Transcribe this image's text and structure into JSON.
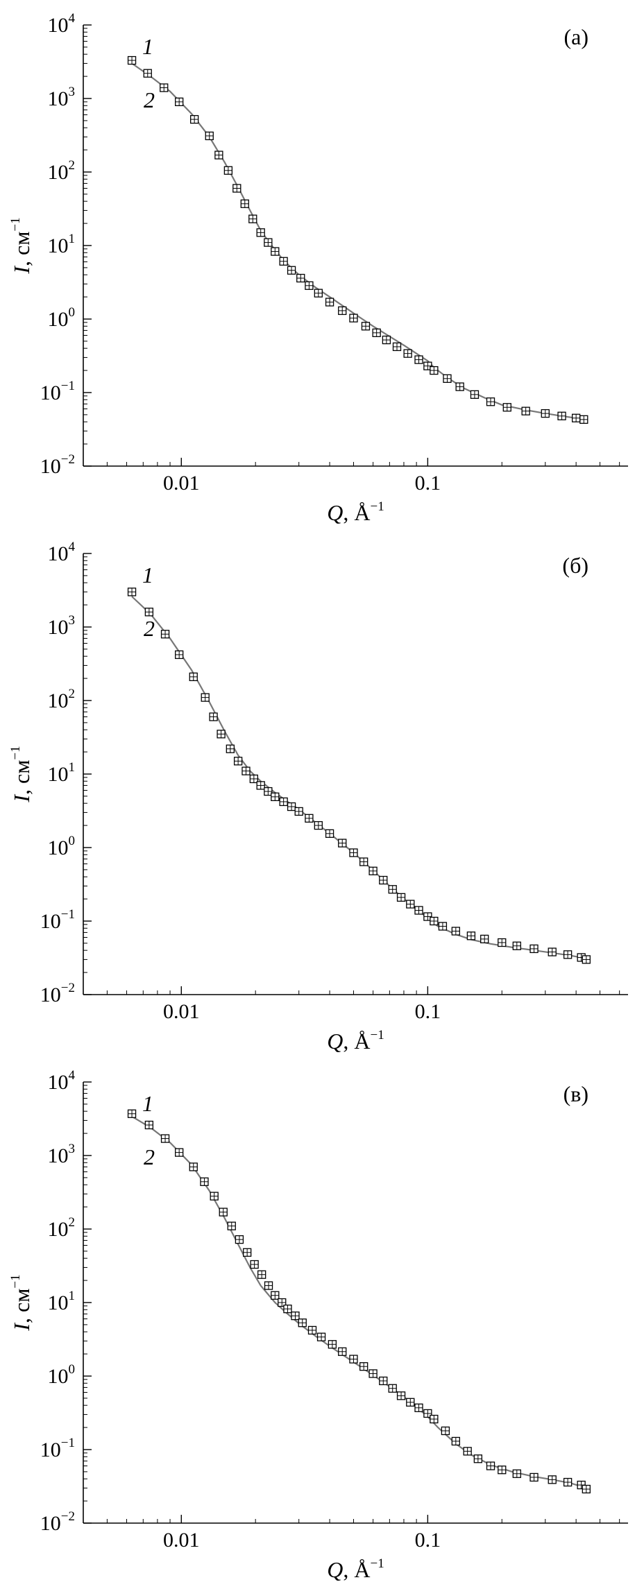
{
  "chart_data": [
    {
      "type": "scatter",
      "panel_label": "(а)",
      "xlabel": {
        "symbol": "Q",
        "unit": "Å",
        "exp": "−1"
      },
      "ylabel": {
        "symbol": "I",
        "unit": "см",
        "exp": "−1"
      },
      "xscale": "log",
      "yscale": "log",
      "xlim": [
        0.004,
        0.65
      ],
      "ylim": [
        0.01,
        10000
      ],
      "x_ticks": [
        {
          "value": 0.01,
          "label": "0.01"
        },
        {
          "value": 0.1,
          "label": "0.1"
        }
      ],
      "y_ticks": [
        {
          "value": 0.01,
          "base": "10",
          "exp": "−2"
        },
        {
          "value": 0.1,
          "base": "10",
          "exp": "−1"
        },
        {
          "value": 1,
          "base": "10",
          "exp": "0"
        },
        {
          "value": 10,
          "base": "10",
          "exp": "1"
        },
        {
          "value": 100,
          "base": "10",
          "exp": "2"
        },
        {
          "value": 1000,
          "base": "10",
          "exp": "3"
        },
        {
          "value": 10000,
          "base": "10",
          "exp": "4"
        }
      ],
      "series_labels": [
        "1",
        "2"
      ],
      "series": [
        {
          "marker": "square",
          "x": [
            0.0063,
            0.0073,
            0.0085,
            0.0098,
            0.0113,
            0.013,
            0.0142,
            0.0155,
            0.0168,
            0.0181,
            0.0195,
            0.021,
            0.0225,
            0.024,
            0.026,
            0.028,
            0.0305,
            0.033,
            0.036,
            0.04,
            0.045,
            0.05,
            0.056,
            0.062,
            0.068,
            0.075,
            0.083,
            0.092,
            0.1,
            0.106,
            0.12,
            0.135,
            0.155,
            0.18,
            0.21,
            0.25,
            0.3,
            0.35,
            0.4,
            0.43
          ],
          "y": [
            3300,
            2200,
            1400,
            900,
            520,
            310,
            170,
            105,
            60,
            37,
            23,
            15,
            11,
            8.3,
            6.1,
            4.6,
            3.6,
            2.85,
            2.25,
            1.7,
            1.3,
            1.03,
            0.8,
            0.65,
            0.52,
            0.42,
            0.34,
            0.28,
            0.23,
            0.2,
            0.155,
            0.12,
            0.094,
            0.075,
            0.063,
            0.056,
            0.052,
            0.048,
            0.045,
            0.043
          ]
        },
        {
          "marker": "line",
          "color": "#777777",
          "x": [
            0.0063,
            0.0075,
            0.009,
            0.011,
            0.013,
            0.015,
            0.017,
            0.019,
            0.021,
            0.023,
            0.026,
            0.03,
            0.035,
            0.04,
            0.05,
            0.06,
            0.07,
            0.08,
            0.09,
            0.1,
            0.106,
            0.12,
            0.14,
            0.17,
            0.2,
            0.25,
            0.3,
            0.35,
            0.4,
            0.43
          ],
          "y": [
            3000,
            2000,
            1250,
            620,
            300,
            135,
            62,
            30,
            16,
            10.5,
            6.3,
            4.0,
            2.7,
            2.0,
            1.2,
            0.8,
            0.58,
            0.44,
            0.34,
            0.27,
            0.22,
            0.16,
            0.115,
            0.085,
            0.068,
            0.058,
            0.052,
            0.048,
            0.045,
            0.043
          ]
        }
      ]
    },
    {
      "type": "scatter",
      "panel_label": "(б)",
      "xlabel": {
        "symbol": "Q",
        "unit": "Å",
        "exp": "−1"
      },
      "ylabel": {
        "symbol": "I",
        "unit": "см",
        "exp": "−1"
      },
      "xscale": "log",
      "yscale": "log",
      "xlim": [
        0.004,
        0.65
      ],
      "ylim": [
        0.01,
        10000
      ],
      "x_ticks": [
        {
          "value": 0.01,
          "label": "0.01"
        },
        {
          "value": 0.1,
          "label": "0.1"
        }
      ],
      "y_ticks": [
        {
          "value": 0.01,
          "base": "10",
          "exp": "−2"
        },
        {
          "value": 0.1,
          "base": "10",
          "exp": "−1"
        },
        {
          "value": 1,
          "base": "10",
          "exp": "0"
        },
        {
          "value": 10,
          "base": "10",
          "exp": "1"
        },
        {
          "value": 100,
          "base": "10",
          "exp": "2"
        },
        {
          "value": 1000,
          "base": "10",
          "exp": "3"
        },
        {
          "value": 10000,
          "base": "10",
          "exp": "4"
        }
      ],
      "series_labels": [
        "1",
        "2"
      ],
      "series": [
        {
          "marker": "square",
          "x": [
            0.0063,
            0.0074,
            0.0086,
            0.0098,
            0.0112,
            0.0125,
            0.0135,
            0.0145,
            0.0158,
            0.017,
            0.0183,
            0.0197,
            0.021,
            0.0225,
            0.024,
            0.026,
            0.028,
            0.03,
            0.033,
            0.036,
            0.04,
            0.045,
            0.05,
            0.055,
            0.06,
            0.066,
            0.072,
            0.078,
            0.085,
            0.092,
            0.1,
            0.106,
            0.115,
            0.13,
            0.15,
            0.17,
            0.2,
            0.23,
            0.27,
            0.32,
            0.37,
            0.42,
            0.44
          ],
          "y": [
            3000,
            1600,
            800,
            420,
            210,
            110,
            60,
            35,
            22,
            15,
            11,
            8.6,
            7.0,
            5.8,
            4.9,
            4.2,
            3.6,
            3.1,
            2.5,
            2.0,
            1.55,
            1.15,
            0.85,
            0.64,
            0.48,
            0.36,
            0.27,
            0.21,
            0.17,
            0.14,
            0.115,
            0.1,
            0.085,
            0.073,
            0.063,
            0.057,
            0.051,
            0.046,
            0.042,
            0.038,
            0.035,
            0.032,
            0.03
          ]
        },
        {
          "marker": "line",
          "color": "#777777",
          "x": [
            0.0063,
            0.0075,
            0.009,
            0.011,
            0.013,
            0.015,
            0.017,
            0.019,
            0.021,
            0.024,
            0.027,
            0.03,
            0.035,
            0.04,
            0.05,
            0.06,
            0.07,
            0.08,
            0.09,
            0.1,
            0.11,
            0.13,
            0.15,
            0.18,
            0.22,
            0.27,
            0.32,
            0.38,
            0.44
          ],
          "y": [
            2600,
            1500,
            700,
            260,
            95,
            38,
            18,
            11,
            8.0,
            5.6,
            4.2,
            3.3,
            2.2,
            1.55,
            0.85,
            0.49,
            0.3,
            0.2,
            0.145,
            0.11,
            0.085,
            0.066,
            0.056,
            0.049,
            0.044,
            0.04,
            0.037,
            0.034,
            0.031
          ]
        }
      ]
    },
    {
      "type": "scatter",
      "panel_label": "(в)",
      "xlabel": {
        "symbol": "Q",
        "unit": "Å",
        "exp": "−1"
      },
      "ylabel": {
        "symbol": "I",
        "unit": "см",
        "exp": "−1"
      },
      "xscale": "log",
      "yscale": "log",
      "xlim": [
        0.004,
        0.65
      ],
      "ylim": [
        0.01,
        10000
      ],
      "x_ticks": [
        {
          "value": 0.01,
          "label": "0.01"
        },
        {
          "value": 0.1,
          "label": "0.1"
        }
      ],
      "y_ticks": [
        {
          "value": 0.01,
          "base": "10",
          "exp": "−2"
        },
        {
          "value": 0.1,
          "base": "10",
          "exp": "−1"
        },
        {
          "value": 1,
          "base": "10",
          "exp": "0"
        },
        {
          "value": 10,
          "base": "10",
          "exp": "1"
        },
        {
          "value": 100,
          "base": "10",
          "exp": "2"
        },
        {
          "value": 1000,
          "base": "10",
          "exp": "3"
        },
        {
          "value": 10000,
          "base": "10",
          "exp": "4"
        }
      ],
      "series_labels": [
        "1",
        "2"
      ],
      "series": [
        {
          "marker": "square",
          "x": [
            0.0063,
            0.0074,
            0.0086,
            0.0098,
            0.0112,
            0.0124,
            0.0136,
            0.0148,
            0.016,
            0.0172,
            0.0185,
            0.0198,
            0.0212,
            0.0226,
            0.024,
            0.0256,
            0.027,
            0.029,
            0.031,
            0.034,
            0.037,
            0.041,
            0.045,
            0.05,
            0.055,
            0.06,
            0.066,
            0.072,
            0.078,
            0.085,
            0.092,
            0.1,
            0.106,
            0.118,
            0.13,
            0.145,
            0.16,
            0.18,
            0.2,
            0.23,
            0.27,
            0.32,
            0.37,
            0.42,
            0.44
          ],
          "y": [
            3700,
            2600,
            1700,
            1100,
            700,
            440,
            280,
            170,
            110,
            72,
            48,
            33,
            24,
            17,
            12.5,
            10,
            8.2,
            6.6,
            5.3,
            4.2,
            3.4,
            2.7,
            2.15,
            1.7,
            1.35,
            1.08,
            0.86,
            0.68,
            0.54,
            0.44,
            0.37,
            0.31,
            0.26,
            0.18,
            0.13,
            0.095,
            0.075,
            0.06,
            0.053,
            0.047,
            0.042,
            0.039,
            0.036,
            0.033,
            0.029
          ]
        },
        {
          "marker": "line",
          "color": "#777777",
          "x": [
            0.0063,
            0.0075,
            0.009,
            0.011,
            0.013,
            0.015,
            0.017,
            0.019,
            0.021,
            0.024,
            0.027,
            0.03,
            0.035,
            0.04,
            0.05,
            0.06,
            0.07,
            0.08,
            0.09,
            0.1,
            0.11,
            0.13,
            0.15,
            0.18,
            0.22,
            0.27,
            0.32,
            0.38,
            0.44
          ],
          "y": [
            3400,
            2400,
            1500,
            750,
            330,
            140,
            62,
            30,
            17,
            10,
            7.0,
            5.2,
            3.5,
            2.55,
            1.55,
            1.03,
            0.72,
            0.52,
            0.38,
            0.28,
            0.2,
            0.12,
            0.085,
            0.062,
            0.05,
            0.043,
            0.039,
            0.035,
            0.03
          ]
        }
      ]
    }
  ]
}
